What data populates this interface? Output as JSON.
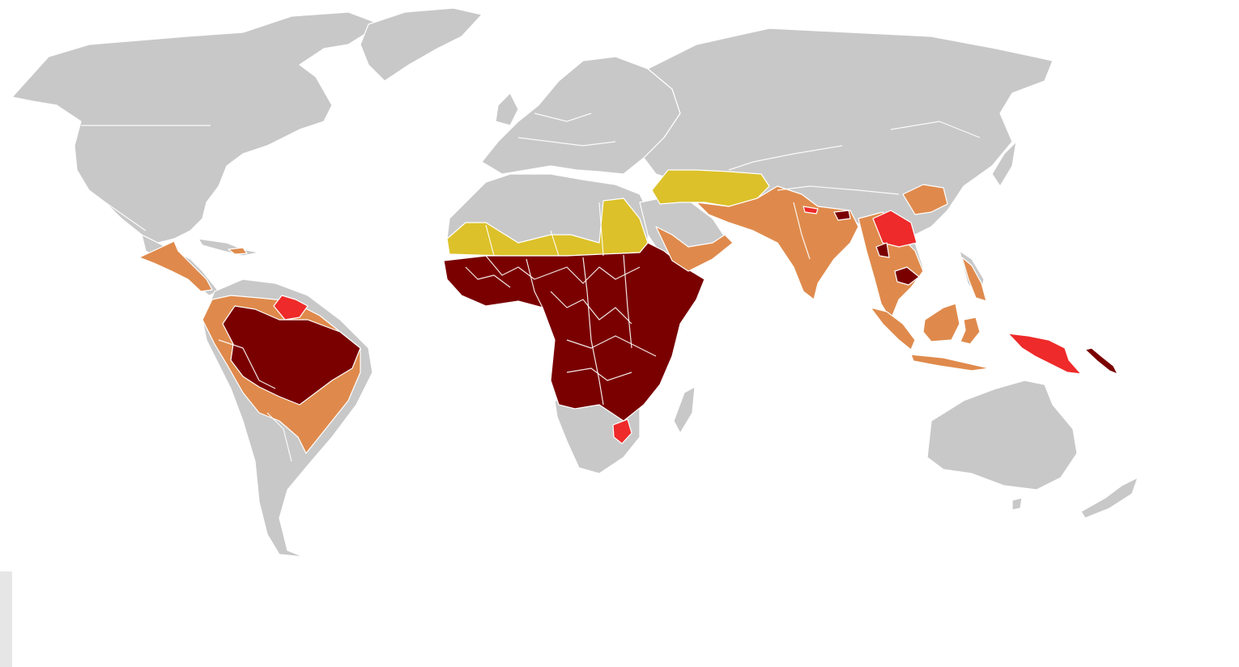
{
  "map": {
    "colors": {
      "land": "#c8c8c8",
      "high_risk": "#7a0000",
      "elevated_risk": "#ee2a2a",
      "moderate_risk": "#df8a4c",
      "low_risk": "#dcc12a",
      "background": "#ffffff",
      "panel": "#e6e6e6"
    },
    "categories": [
      "land",
      "high_risk",
      "elevated_risk",
      "moderate_risk",
      "low_risk"
    ]
  }
}
